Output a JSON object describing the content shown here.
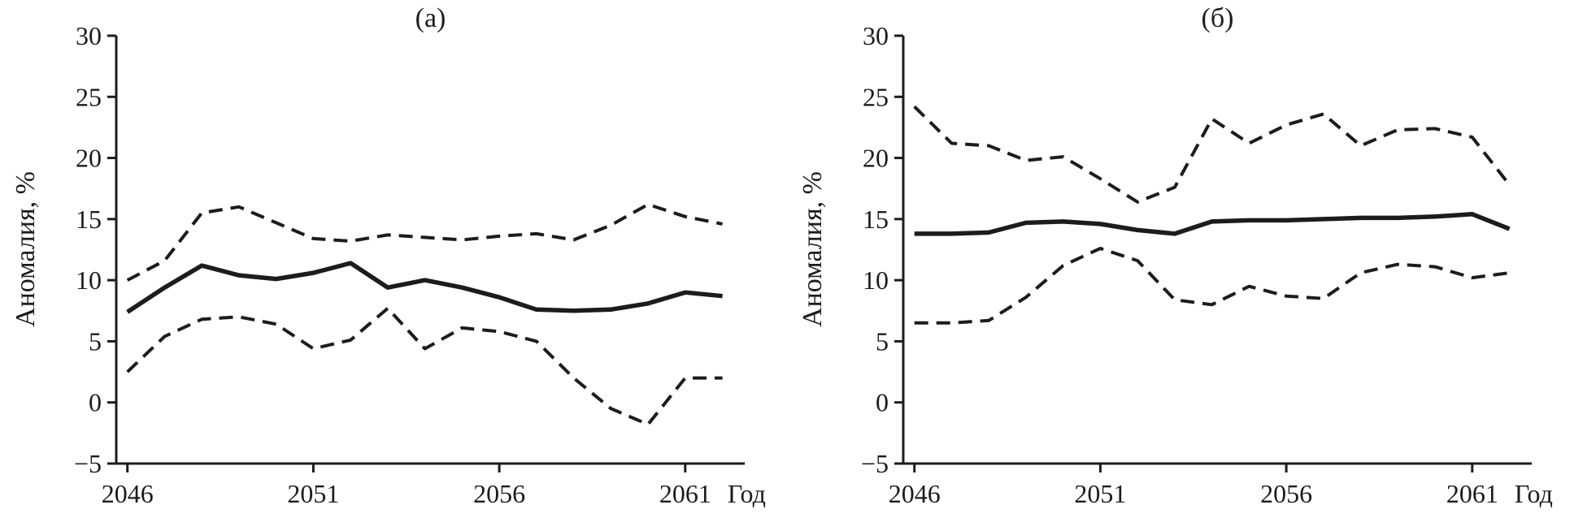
{
  "figure": {
    "background": "#ffffff",
    "line_color": "#1c1c1c"
  },
  "chart_data": [
    {
      "type": "line",
      "title": "(а)",
      "ylabel": "Аномалия, %",
      "x_unit_label": "Год",
      "xlim": [
        2045.7,
        2062.6
      ],
      "ylim": [
        -5,
        30
      ],
      "xticks": [
        2046,
        2051,
        2056,
        2061
      ],
      "yticks": [
        -5,
        0,
        5,
        10,
        15,
        20,
        25,
        30
      ],
      "grid": false,
      "legend": null,
      "x": [
        2046,
        2047,
        2048,
        2049,
        2050,
        2051,
        2052,
        2053,
        2054,
        2055,
        2056,
        2057,
        2058,
        2059,
        2060,
        2061,
        2062
      ],
      "series": [
        {
          "name": "mean",
          "style": "solid",
          "values": [
            7.4,
            9.4,
            11.2,
            10.4,
            10.1,
            10.6,
            11.4,
            9.4,
            10.0,
            9.4,
            8.6,
            7.6,
            7.5,
            7.6,
            8.1,
            9.0,
            8.7
          ]
        },
        {
          "name": "upper-bound",
          "style": "dashed",
          "values": [
            10.0,
            11.6,
            15.5,
            16.0,
            14.7,
            13.4,
            13.2,
            13.7,
            13.5,
            13.3,
            13.6,
            13.8,
            13.3,
            14.5,
            16.2,
            15.2,
            14.6
          ]
        },
        {
          "name": "lower-bound",
          "style": "dashed",
          "values": [
            2.5,
            5.4,
            6.8,
            7.0,
            6.4,
            4.4,
            5.1,
            7.7,
            4.4,
            6.1,
            5.8,
            5.0,
            2.0,
            -0.5,
            -1.8,
            2.0,
            2.0
          ]
        }
      ]
    },
    {
      "type": "line",
      "title": "(б)",
      "ylabel": "Аномалия, %",
      "x_unit_label": "Год",
      "xlim": [
        2045.7,
        2062.6
      ],
      "ylim": [
        -5,
        30
      ],
      "xticks": [
        2046,
        2051,
        2056,
        2061
      ],
      "yticks": [
        -5,
        0,
        5,
        10,
        15,
        20,
        25,
        30
      ],
      "grid": false,
      "legend": null,
      "x": [
        2046,
        2047,
        2048,
        2049,
        2050,
        2051,
        2052,
        2053,
        2054,
        2055,
        2056,
        2057,
        2058,
        2059,
        2060,
        2061,
        2062
      ],
      "series": [
        {
          "name": "mean",
          "style": "solid",
          "values": [
            13.8,
            13.8,
            13.9,
            14.7,
            14.8,
            14.6,
            14.1,
            13.8,
            14.8,
            14.9,
            14.9,
            15.0,
            15.1,
            15.1,
            15.2,
            15.4,
            14.2
          ]
        },
        {
          "name": "upper-bound",
          "style": "dashed",
          "values": [
            24.2,
            21.2,
            21.0,
            19.8,
            20.1,
            18.3,
            16.4,
            17.6,
            23.2,
            21.2,
            22.7,
            23.6,
            21.0,
            22.3,
            22.4,
            21.7,
            17.8
          ]
        },
        {
          "name": "lower-bound",
          "style": "dashed",
          "values": [
            6.5,
            6.5,
            6.7,
            8.6,
            11.2,
            12.6,
            11.6,
            8.4,
            8.0,
            9.5,
            8.7,
            8.5,
            10.6,
            11.3,
            11.1,
            10.2,
            10.6
          ]
        }
      ]
    }
  ]
}
